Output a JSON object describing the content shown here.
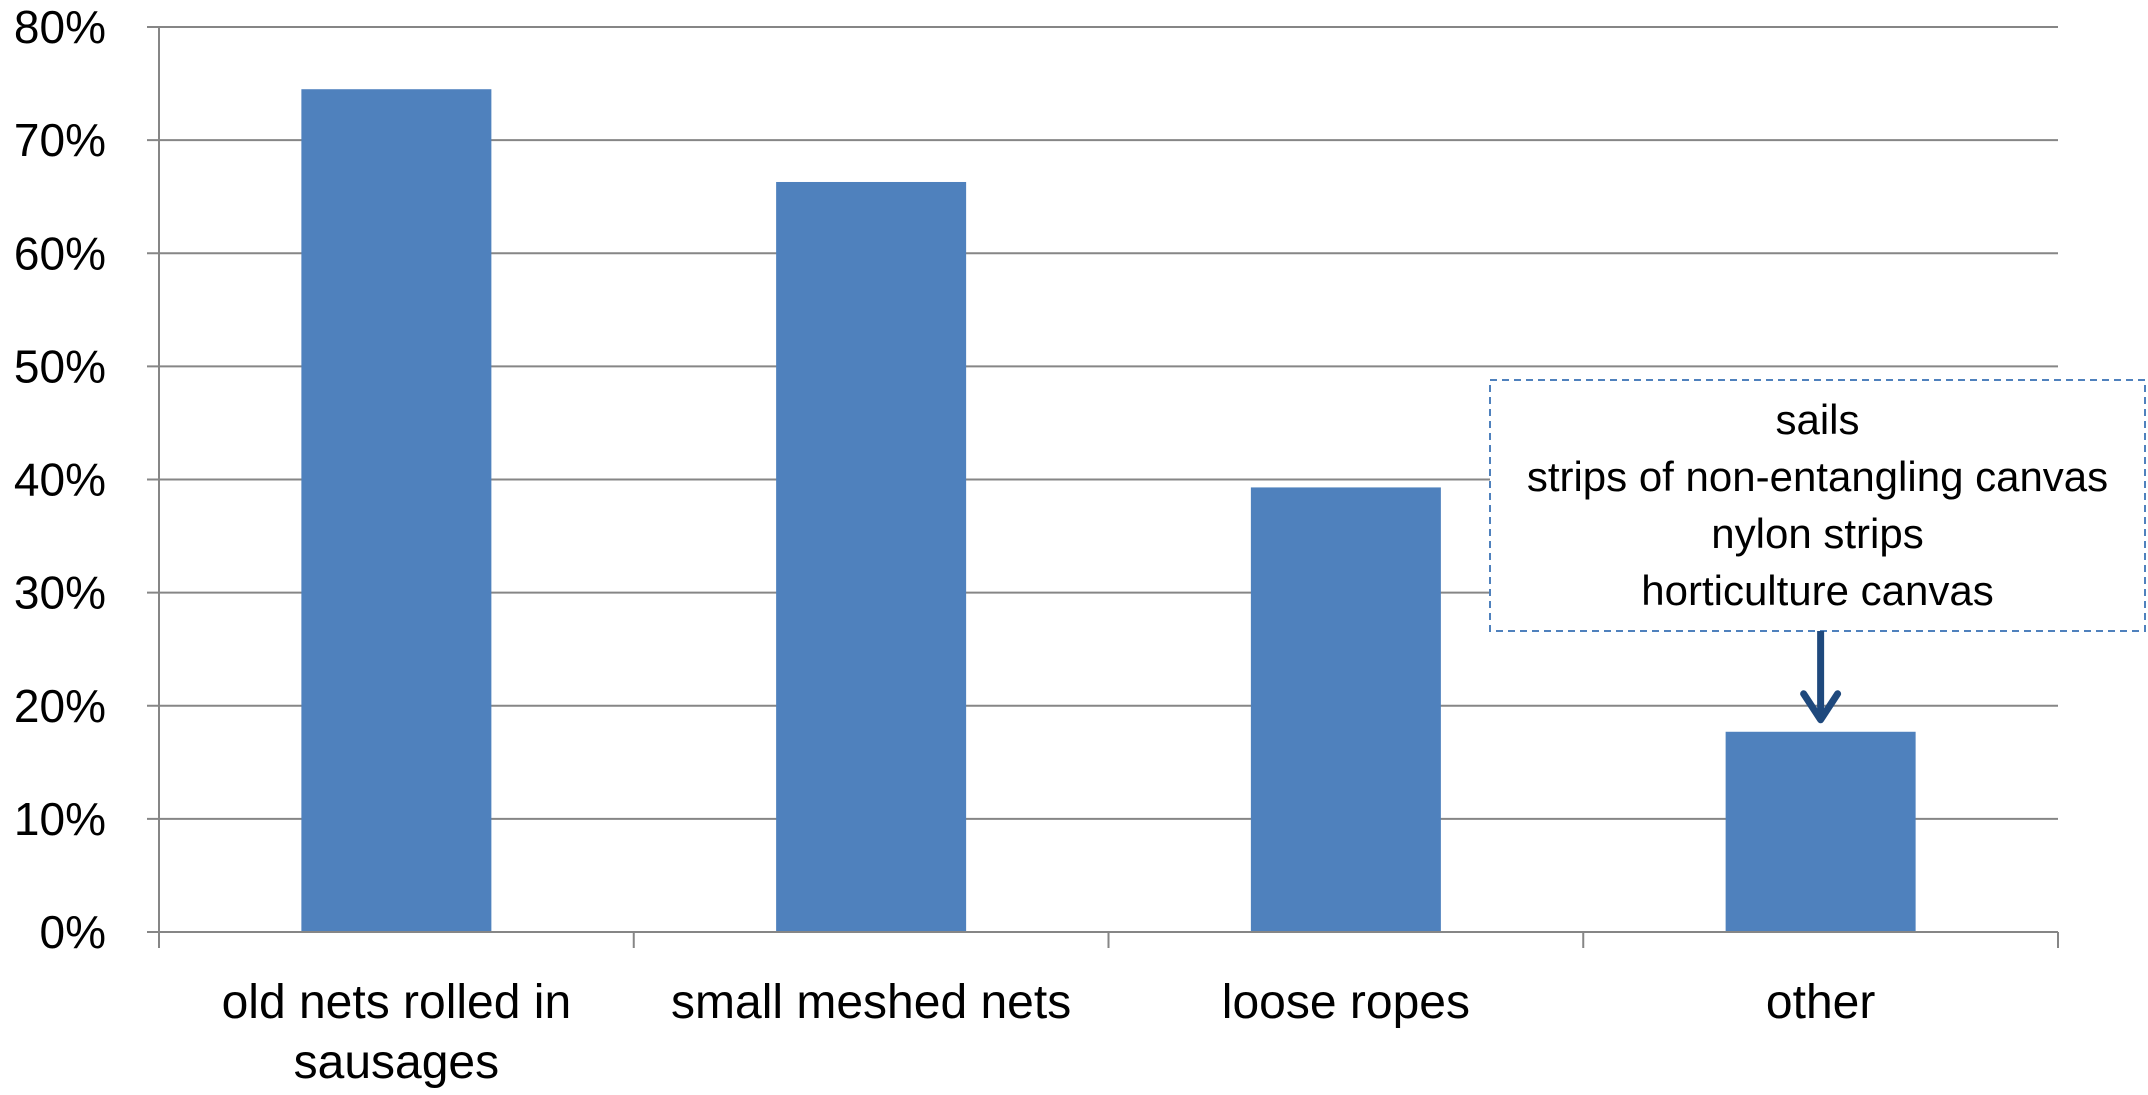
{
  "chart_data": {
    "type": "bar",
    "title": "",
    "xlabel": "",
    "ylabel": "",
    "categories": [
      [
        "old nets rolled in",
        "sausages"
      ],
      [
        "small meshed nets"
      ],
      [
        "loose ropes"
      ],
      [
        "other"
      ]
    ],
    "values": [
      74.5,
      66.3,
      39.3,
      17.7
    ],
    "ylim": [
      0,
      80
    ],
    "yticks": [
      "0%",
      "10%",
      "20%",
      "30%",
      "40%",
      "50%",
      "60%",
      "70%",
      "80%"
    ],
    "grid": true,
    "colors": {
      "bar": "#4F81BD",
      "grid": "#868686",
      "callout_border": "#4F81BD",
      "arrow": "#1F497D"
    },
    "annotation": {
      "category": "other",
      "lines": [
        "sails",
        "strips of non-entangling canvas",
        "nylon strips",
        "horticulture canvas"
      ]
    }
  }
}
